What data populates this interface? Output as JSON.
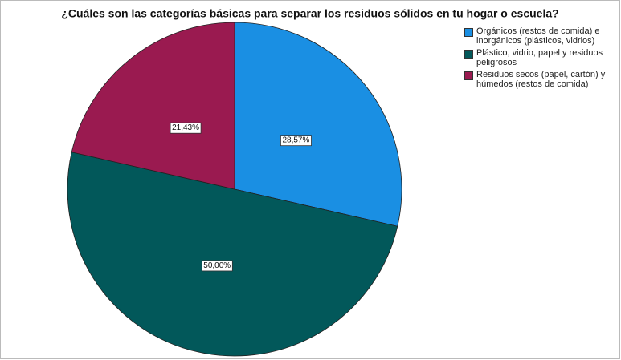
{
  "chart_data": {
    "type": "pie",
    "title": "¿Cuáles son las categorías básicas para separar los residuos sólidos en tu hogar o escuela?",
    "categories": [
      "Orgánicos (restos de comida) e inorgánicos (plásticos, vidrios)",
      "Plástico, vidrio, papel y residuos peligrosos",
      "Residuos secos (papel, cartón) y húmedos (restos de comida)"
    ],
    "values": [
      28.57,
      50.0,
      21.43
    ],
    "value_labels": [
      "28,57%",
      "50,00%",
      "21,43%"
    ],
    "colors": [
      "#1a8fe3",
      "#02585a",
      "#9a1a50"
    ],
    "legend": "top-right"
  }
}
